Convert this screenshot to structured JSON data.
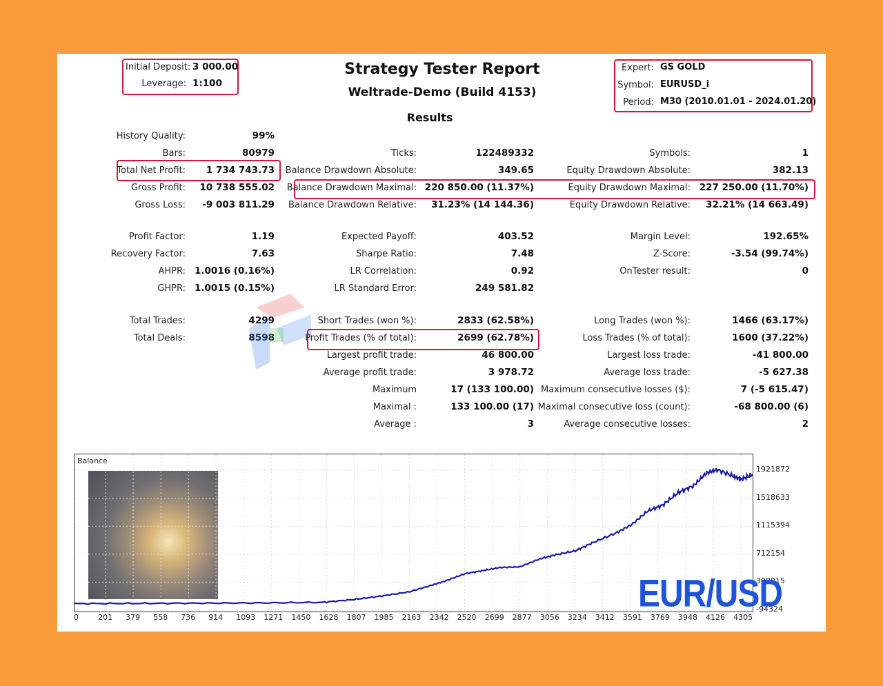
{
  "header": {
    "title": "Strategy Tester Report",
    "subtitle": "Weltrade-Demo (Build 4153)",
    "results_heading": "Results",
    "left": {
      "initial_deposit_label": "Initial Deposit:",
      "initial_deposit_value": "3 000.00",
      "leverage_label": "Leverage:",
      "leverage_value": "1:100"
    },
    "right": {
      "expert_label": "Expert:",
      "expert_value": "GS GOLD",
      "symbol_label": "Symbol:",
      "symbol_value": "EURUSD_i",
      "period_label": "Period:",
      "period_value": "M30 (2010.01.01 - 2024.01.20)"
    }
  },
  "stats": {
    "history_quality": {
      "label": "History Quality:",
      "value": "99%"
    },
    "bars": {
      "label": "Bars:",
      "value": "80979"
    },
    "ticks": {
      "label": "Ticks:",
      "value": "122489332"
    },
    "symbols": {
      "label": "Symbols:",
      "value": "1"
    },
    "total_net_profit": {
      "label": "Total Net Profit:",
      "value": "1 734 743.73"
    },
    "balance_dd_abs": {
      "label": "Balance Drawdown Absolute:",
      "value": "349.65"
    },
    "equity_dd_abs": {
      "label": "Equity Drawdown Absolute:",
      "value": "382.13"
    },
    "gross_profit": {
      "label": "Gross Profit:",
      "value": "10 738 555.02"
    },
    "balance_dd_max": {
      "label": "Balance Drawdown Maximal:",
      "value": "220 850.00 (11.37%)"
    },
    "equity_dd_max": {
      "label": "Equity Drawdown Maximal:",
      "value": "227 250.00 (11.70%)"
    },
    "gross_loss": {
      "label": "Gross Loss:",
      "value": "-9 003 811.29"
    },
    "balance_dd_rel": {
      "label": "Balance Drawdown Relative:",
      "value": "31.23% (14 144.36)"
    },
    "equity_dd_rel": {
      "label": "Equity Drawdown Relative:",
      "value": "32.21% (14 663.49)"
    },
    "profit_factor": {
      "label": "Profit Factor:",
      "value": "1.19"
    },
    "expected_payoff": {
      "label": "Expected Payoff:",
      "value": "403.52"
    },
    "margin_level": {
      "label": "Margin Level:",
      "value": "192.65%"
    },
    "recovery_factor": {
      "label": "Recovery Factor:",
      "value": "7.63"
    },
    "sharpe_ratio": {
      "label": "Sharpe Ratio:",
      "value": "7.48"
    },
    "z_score": {
      "label": "Z-Score:",
      "value": "-3.54 (99.74%)"
    },
    "ahpr": {
      "label": "AHPR:",
      "value": "1.0016 (0.16%)"
    },
    "lr_correlation": {
      "label": "LR Correlation:",
      "value": "0.92"
    },
    "ontester": {
      "label": "OnTester result:",
      "value": "0"
    },
    "ghpr": {
      "label": "GHPR:",
      "value": "1.0015 (0.15%)"
    },
    "lr_std_error": {
      "label": "LR Standard Error:",
      "value": "249 581.82"
    },
    "total_trades": {
      "label": "Total Trades:",
      "value": "4299"
    },
    "short_trades": {
      "label": "Short Trades (won %):",
      "value": "2833 (62.58%)"
    },
    "long_trades": {
      "label": "Long Trades (won %):",
      "value": "1466 (63.17%)"
    },
    "total_deals": {
      "label": "Total Deals:",
      "value": "8598"
    },
    "profit_trades": {
      "label": "Profit Trades (% of total):",
      "value": "2699 (62.78%)"
    },
    "loss_trades": {
      "label": "Loss Trades (% of total):",
      "value": "1600 (37.22%)"
    },
    "largest_profit": {
      "label": "Largest profit trade:",
      "value": "46 800.00"
    },
    "largest_loss": {
      "label": "Largest loss trade:",
      "value": "-41 800.00"
    },
    "avg_profit": {
      "label": "Average profit trade:",
      "value": "3 978.72"
    },
    "avg_loss": {
      "label": "Average loss trade:",
      "value": "-5 627.38"
    },
    "max_consec_wins": {
      "label": "Maximum",
      "value": "17 (133 100.00)"
    },
    "max_consec_losses": {
      "label": "Maximum consecutive losses ($):",
      "value": "7 (-5 615.47)"
    },
    "maximal_consec_profit": {
      "label": "Maximal :",
      "value": "133 100.00 (17)"
    },
    "maximal_consec_loss": {
      "label": "Maximal consecutive loss (count):",
      "value": "-68 800.00 (6)"
    },
    "avg_consec_wins": {
      "label": "Average :",
      "value": "3"
    },
    "avg_consec_losses": {
      "label": "Average consecutive losses:",
      "value": "2"
    }
  },
  "chart_data": {
    "type": "line",
    "title": "Balance",
    "xlabel": "",
    "ylabel": "",
    "x_ticks": [
      "0",
      "201",
      "379",
      "558",
      "736",
      "914",
      "1093",
      "1271",
      "1450",
      "1628",
      "1807",
      "1985",
      "2163",
      "2342",
      "2520",
      "2699",
      "2877",
      "3056",
      "3234",
      "3412",
      "3591",
      "3769",
      "3948",
      "4126",
      "4305"
    ],
    "y_ticks": [
      "1921872",
      "1518633",
      "1115394",
      "712154",
      "308915",
      "-94324"
    ],
    "xlim": [
      0,
      4380
    ],
    "ylim": [
      -94324,
      2100000
    ],
    "series": [
      {
        "color": "#1a1aa8",
        "x": [
          0,
          400,
          800,
          1200,
          1600,
          1807,
          1985,
          2163,
          2300,
          2400,
          2520,
          2650,
          2750,
          2877,
          3000,
          3100,
          3234,
          3350,
          3500,
          3600,
          3700,
          3800,
          3900,
          4000,
          4080,
          4150,
          4250,
          4305,
          4380
        ],
        "values": [
          0,
          3000,
          6000,
          10000,
          18000,
          60000,
          110000,
          170000,
          260000,
          330000,
          430000,
          480000,
          520000,
          530000,
          640000,
          700000,
          760000,
          880000,
          1020000,
          1140000,
          1330000,
          1420000,
          1600000,
          1700000,
          1880000,
          1930000,
          1840000,
          1790000,
          1860000
        ]
      }
    ]
  },
  "chart_overlay": {
    "label": "EUR/USD"
  },
  "colors": {
    "background": "#f99b3a",
    "highlight": "#d1173a",
    "line": "#1a1aa8",
    "accent_blue": "#1e54d8"
  }
}
